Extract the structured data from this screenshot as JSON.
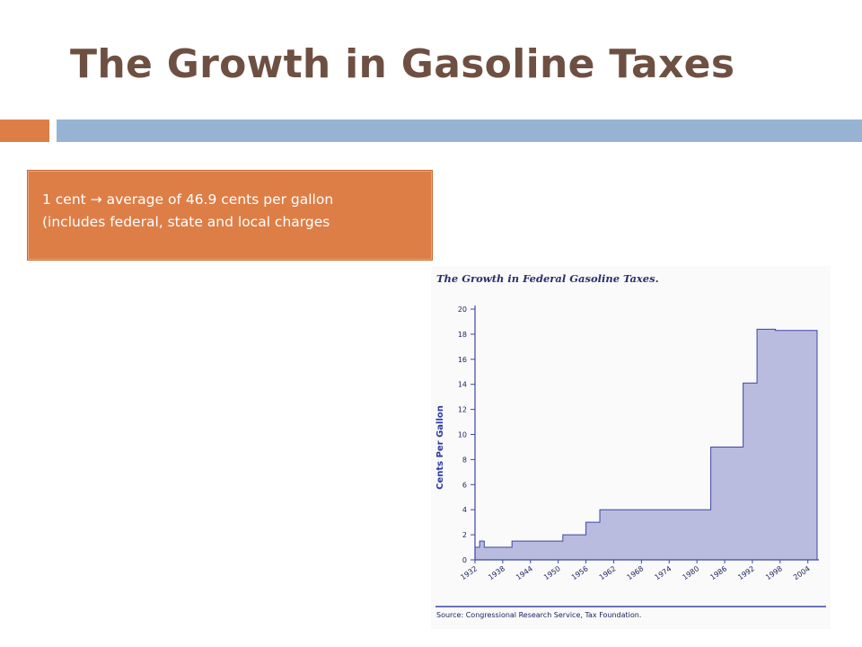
{
  "slide": {
    "title": "The Growth in Gasoline Taxes",
    "callout_line1": "1 cent → average of 46.9 cents per gallon",
    "callout_line2": "(includes federal, state and local charges"
  },
  "colors": {
    "title": "#6e5042",
    "accent_orange": "#dd7e47",
    "accent_blue": "#97b3d3",
    "chart_fill": "#b9bcdf",
    "chart_line": "#3d45a8"
  },
  "chart_data": {
    "type": "area",
    "title": "The Growth in Federal Gasoline Taxes.",
    "ylabel": "Cents Per Gallon",
    "xlabel": "",
    "source": "Source: Congressional Research Service, Tax Foundation.",
    "ylim": [
      0,
      20
    ],
    "xlim": [
      1932,
      2006
    ],
    "yticks": [
      "0",
      "2",
      "4",
      "6",
      "8",
      "10",
      "12",
      "14",
      "16",
      "18",
      "20"
    ],
    "xticks": [
      "1932",
      "1938",
      "1944",
      "1950",
      "1956",
      "1962",
      "1968",
      "1974",
      "1980",
      "1986",
      "1992",
      "1998",
      "2004"
    ],
    "step": "post",
    "series": [
      {
        "x": [
          1932,
          1933,
          1934,
          1940,
          1951,
          1956,
          1959,
          1983,
          1990,
          1993,
          1997,
          2006
        ],
        "y": [
          1,
          1.5,
          1,
          1.5,
          2,
          3,
          4,
          9,
          14.1,
          18.4,
          18.3,
          18.3
        ]
      }
    ]
  }
}
